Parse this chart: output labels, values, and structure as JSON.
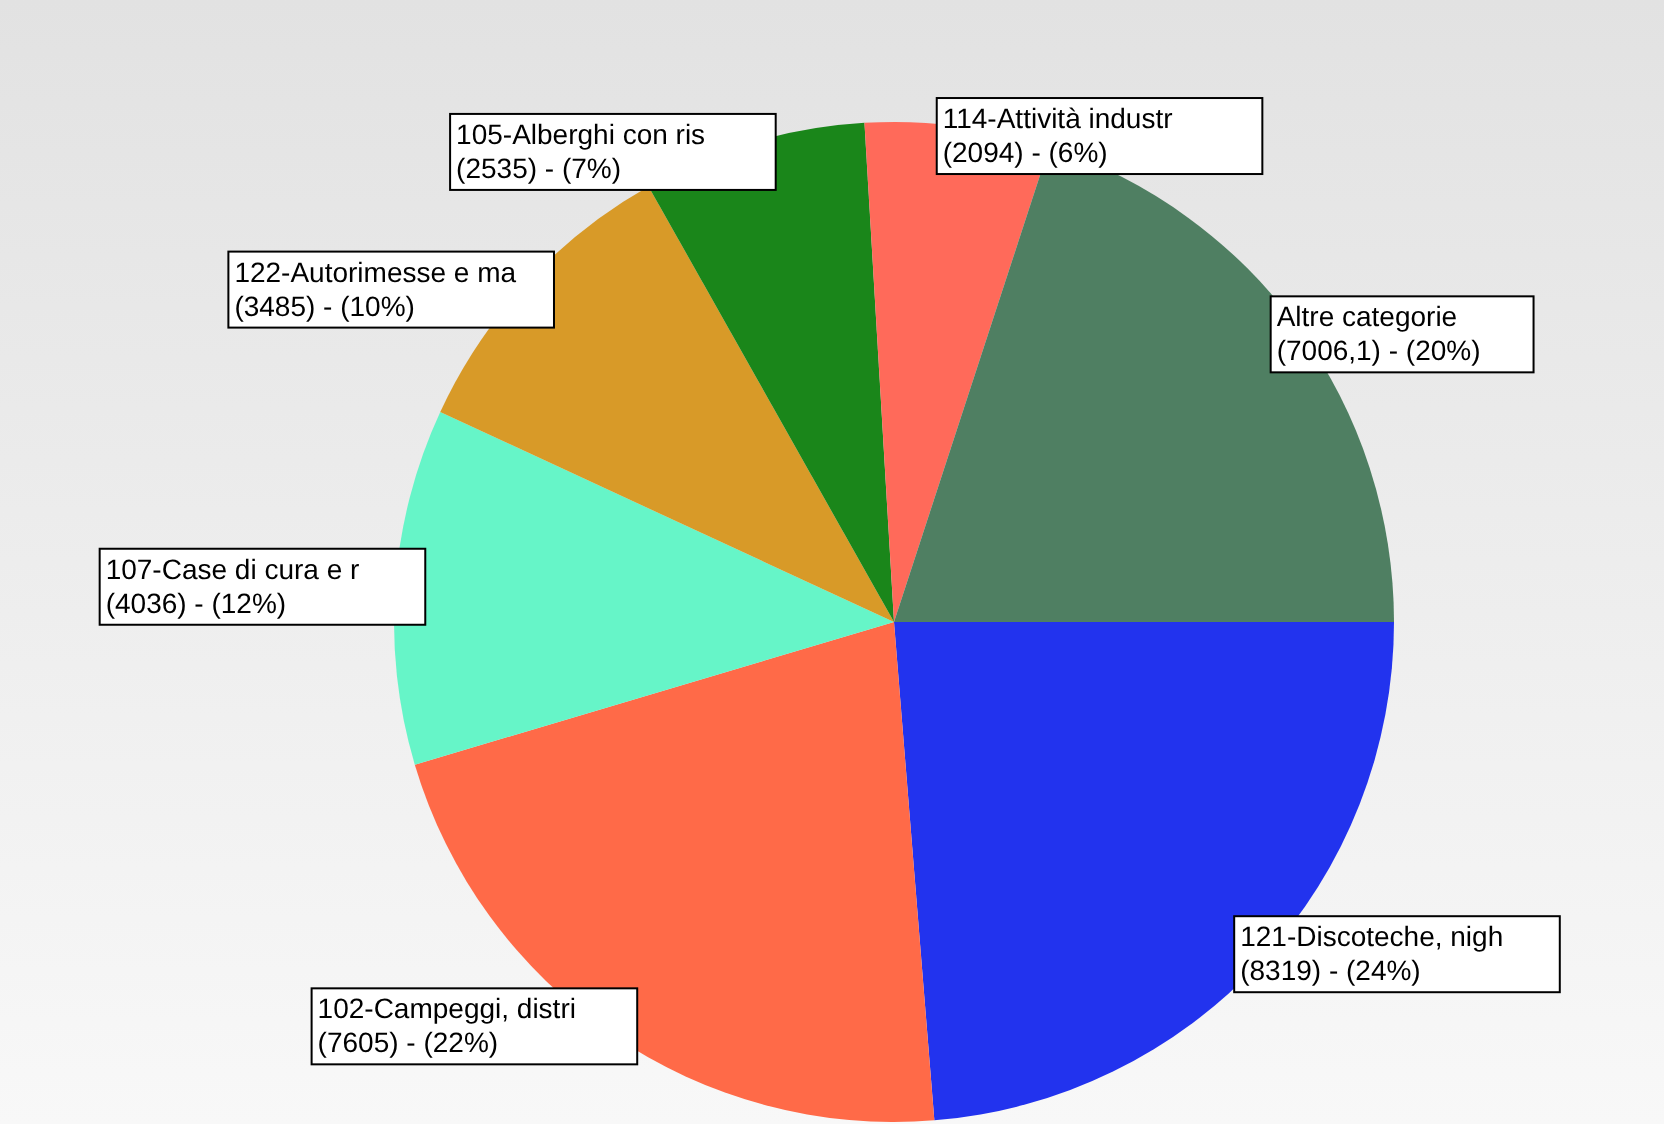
{
  "chart_data": {
    "type": "pie",
    "categories": [
      "121-Discoteche, nigh",
      "102-Campeggi, distri",
      "107-Case di cura e r",
      "122-Autorimesse e ma",
      "105-Alberghi con ris",
      "114-Attività industr",
      "Altre categorie"
    ],
    "values": [
      8319,
      7605,
      4036,
      3485,
      2535,
      2094,
      7006.1
    ],
    "value_labels": [
      "(8319) - (24%)",
      "(7605) - (22%)",
      "(4036) - (12%)",
      "(3485) - (10%)",
      "(2535) - (7%)",
      "(2094) - (6%)",
      "(7006,1) - (20%)"
    ],
    "colors": [
      "#2233ee",
      "#ff6a48",
      "#66f5c8",
      "#d89a28",
      "#1a861a",
      "#ff6a5a",
      "#4f7f62"
    ],
    "legend": false
  }
}
